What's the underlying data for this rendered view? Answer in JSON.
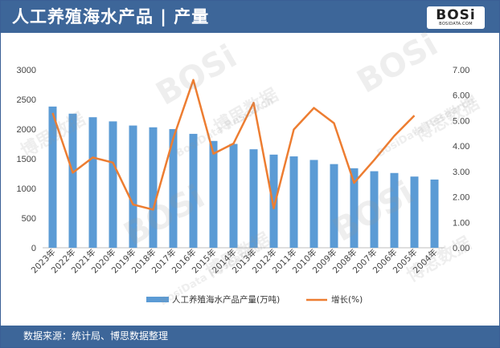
{
  "header": {
    "title": "人工养殖海水产品 | 产量",
    "logo_text": "BOSi",
    "logo_sub": "BOSIDATA.COM"
  },
  "footer": {
    "source": "数据来源：统计局、博思数据整理"
  },
  "watermark": {
    "logo": "BOSi",
    "cn": "博思数据",
    "en": "BosiData Research"
  },
  "colors": {
    "header_bg": "#3d6699",
    "bar": "#5b9bd5",
    "line": "#ed7d31"
  },
  "chart_data": {
    "type": "bar",
    "title": "",
    "categories": [
      "2023年",
      "2022年",
      "2021年",
      "2020年",
      "2019年",
      "2018年",
      "2017年",
      "2016年",
      "2015年",
      "2014年",
      "2013年",
      "2012年",
      "2011年",
      "2010年",
      "2009年",
      "2008年",
      "2007年",
      "2006年",
      "2005年",
      "2004年"
    ],
    "series": [
      {
        "name": "人工养殖海水产品产量(万吨)",
        "type": "bar",
        "axis": "left",
        "values": [
          2380,
          2260,
          2200,
          2130,
          2060,
          2030,
          2000,
          1920,
          1800,
          1750,
          1660,
          1570,
          1540,
          1480,
          1410,
          1340,
          1290,
          1260,
          1200,
          1150
        ]
      },
      {
        "name": "增长(%)",
        "type": "line",
        "axis": "right",
        "values": [
          5.3,
          2.95,
          3.55,
          3.35,
          1.7,
          1.5,
          4.3,
          6.6,
          3.7,
          4.1,
          5.7,
          1.55,
          4.65,
          5.5,
          4.9,
          2.55,
          3.45,
          4.4,
          5.2,
          null
        ]
      }
    ],
    "y_left": {
      "ylim": [
        0,
        3000
      ],
      "ticks": [
        "0",
        "500",
        "1000",
        "1500",
        "2000",
        "2500",
        "3000"
      ]
    },
    "y_right": {
      "ylim": [
        0,
        7
      ],
      "ticks": [
        "0.00",
        "1.00",
        "2.00",
        "3.00",
        "4.00",
        "5.00",
        "6.00",
        "7.00"
      ]
    },
    "grid": false,
    "legend": "bottom"
  }
}
